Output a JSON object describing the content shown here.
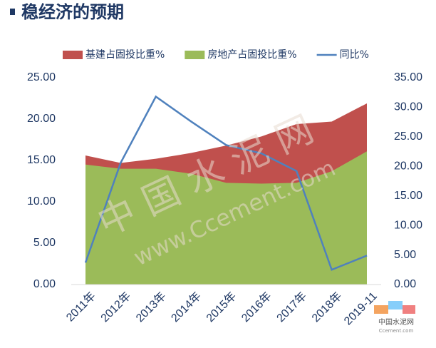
{
  "chart_data": {
    "type": "area-line",
    "title": "稳经济的预期",
    "categories": [
      "2011年",
      "2012年",
      "2013年",
      "2014年",
      "2015年",
      "2016年",
      "2017年",
      "2018年",
      "2019-11"
    ],
    "series": [
      {
        "name": "基建占固投比重%",
        "type": "area",
        "color": "#c0504d",
        "values": [
          15.6,
          14.7,
          15.2,
          15.9,
          16.8,
          17.9,
          19.4,
          19.7,
          21.9
        ]
      },
      {
        "name": "房地产占固投比重%",
        "type": "area",
        "color": "#9bbb59",
        "values": [
          14.5,
          14.0,
          14.0,
          13.4,
          12.3,
          12.2,
          12.3,
          13.7,
          16.1
        ]
      },
      {
        "name": "同比%",
        "type": "line",
        "axis": "y2",
        "color": "#4f81bd",
        "values": [
          3.7,
          20.6,
          31.8,
          27.6,
          23.6,
          22.2,
          19.2,
          2.5,
          4.9
        ]
      }
    ],
    "ylim": [
      0,
      25
    ],
    "yticks": [
      {
        "value": 0,
        "label": "0.00"
      },
      {
        "value": 5,
        "label": "5.00"
      },
      {
        "value": 10,
        "label": "10.00"
      },
      {
        "value": 15,
        "label": "15.00"
      },
      {
        "value": 20,
        "label": "20.00"
      },
      {
        "value": 25,
        "label": "25.00"
      }
    ],
    "y2lim": [
      0,
      35
    ],
    "y2ticks": [
      {
        "value": 0,
        "label": "0.00"
      },
      {
        "value": 5,
        "label": "5.00"
      },
      {
        "value": 10,
        "label": "10.00"
      },
      {
        "value": 15,
        "label": "15.00"
      },
      {
        "value": 20,
        "label": "20.00"
      },
      {
        "value": 25,
        "label": "25.00"
      },
      {
        "value": 30,
        "label": "30.00"
      },
      {
        "value": 35,
        "label": "35.00"
      }
    ],
    "legend": "top",
    "watermark": [
      "中 国 水 泥 网",
      "www.Ccement.com"
    ],
    "logo": [
      "中国水泥网",
      "Ccement.com"
    ]
  }
}
